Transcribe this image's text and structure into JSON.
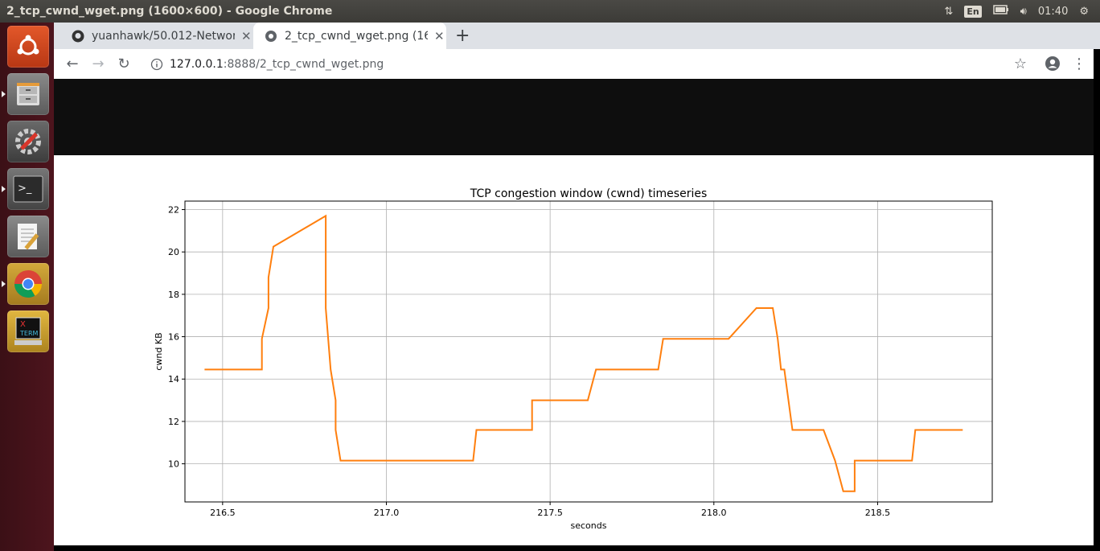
{
  "window": {
    "title": "2_tcp_cwnd_wget.png (1600×600) - Google Chrome"
  },
  "tray": {
    "lang": "En",
    "time": "01:40"
  },
  "tabs": [
    {
      "label": "yuanhawk/50.012-Networ",
      "active": false
    },
    {
      "label": "2_tcp_cwnd_wget.png (16",
      "active": true
    }
  ],
  "address": {
    "host": "127.0.0.1",
    "path": ":8888/2_tcp_cwnd_wget.png"
  },
  "colors": {
    "line": "#ff7f0e",
    "launcher": "#4d141d"
  },
  "chart_data": {
    "type": "line",
    "title": "TCP congestion window (cwnd) timeseries",
    "xlabel": "seconds",
    "ylabel": "cwnd KB",
    "xlim": [
      216.385,
      218.85
    ],
    "ylim": [
      8.2,
      22.4
    ],
    "xticks": [
      216.5,
      217.0,
      217.5,
      218.0,
      218.5
    ],
    "xtick_labels": [
      "216.5",
      "217.0",
      "217.5",
      "218.0",
      "218.5"
    ],
    "yticks": [
      10,
      12,
      14,
      16,
      18,
      20,
      22
    ],
    "ytick_labels": [
      "10",
      "12",
      "14",
      "16",
      "18",
      "20",
      "22"
    ],
    "grid": true,
    "series": [
      {
        "x": [
          216.445,
          216.62,
          216.62,
          216.64,
          216.64,
          216.655,
          216.815,
          216.815,
          216.83,
          216.845,
          216.845,
          216.86,
          217.265,
          217.275,
          217.445,
          217.445,
          217.615,
          217.64,
          217.83,
          217.845,
          218.045,
          218.13,
          218.18,
          218.195,
          218.205,
          218.215,
          218.24,
          218.335,
          218.37,
          218.395,
          218.43,
          218.43,
          218.605,
          218.615,
          218.76
        ],
        "y": [
          14.45,
          14.45,
          15.9,
          17.35,
          18.8,
          20.25,
          21.7,
          17.35,
          14.45,
          13.0,
          11.6,
          10.15,
          10.15,
          11.6,
          11.6,
          13.0,
          13.0,
          14.45,
          14.45,
          15.9,
          15.9,
          17.35,
          17.35,
          15.9,
          14.45,
          14.45,
          11.6,
          11.6,
          10.15,
          8.7,
          8.7,
          10.15,
          10.15,
          11.6,
          11.6
        ]
      }
    ]
  }
}
